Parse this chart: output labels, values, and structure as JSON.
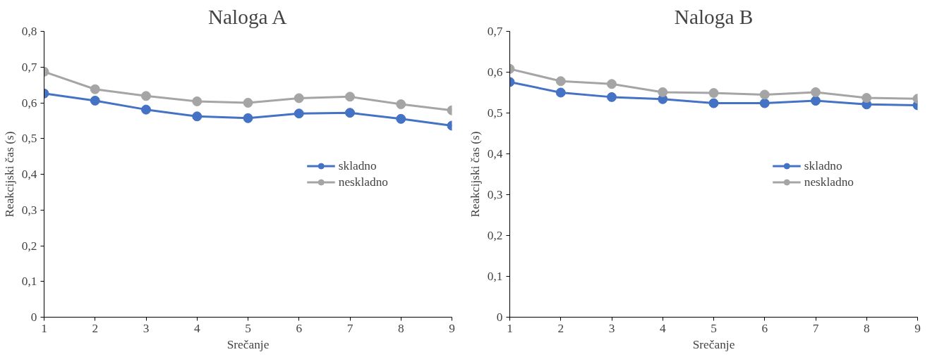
{
  "chart_data": [
    {
      "type": "line",
      "title": "Naloga A",
      "xlabel": "Srečanje",
      "ylabel": "Reakcijski čas (s)",
      "x": [
        1,
        2,
        3,
        4,
        5,
        6,
        7,
        8,
        9
      ],
      "series": [
        {
          "name": "skladno",
          "color": "#4472c4",
          "values": [
            0.626,
            0.606,
            0.581,
            0.562,
            0.557,
            0.57,
            0.572,
            0.555,
            0.536
          ]
        },
        {
          "name": "neskladno",
          "color": "#a5a5a5",
          "values": [
            0.687,
            0.638,
            0.619,
            0.604,
            0.6,
            0.613,
            0.617,
            0.596,
            0.579
          ]
        }
      ],
      "xlim": [
        1,
        9
      ],
      "xticks": [
        1,
        2,
        3,
        4,
        5,
        6,
        7,
        8,
        9
      ],
      "ylim": [
        0,
        0.8
      ],
      "yticks": [
        0,
        {
          "value": 0.1,
          "label": "0,1"
        },
        {
          "value": 0.2,
          "label": "0,2"
        },
        {
          "value": 0.3,
          "label": "0,3"
        },
        {
          "value": 0.4,
          "label": "0,4"
        },
        {
          "value": 0.5,
          "label": "0,5"
        },
        {
          "value": 0.6,
          "label": "0,6"
        },
        {
          "value": 0.7,
          "label": "0,7"
        },
        {
          "value": 0.8,
          "label": "0,8"
        }
      ],
      "grid": false,
      "legend": "right",
      "marker": "circle",
      "line_style": "solid"
    },
    {
      "type": "line",
      "title": "Naloga B",
      "xlabel": "Srečanje",
      "ylabel": "Reakcijski čas (s)",
      "x": [
        1,
        2,
        3,
        4,
        5,
        6,
        7,
        8,
        9
      ],
      "series": [
        {
          "name": "skladno",
          "color": "#4472c4",
          "values": [
            0.576,
            0.55,
            0.539,
            0.534,
            0.524,
            0.524,
            0.53,
            0.521,
            0.519
          ]
        },
        {
          "name": "neskladno",
          "color": "#a5a5a5",
          "values": [
            0.608,
            0.578,
            0.571,
            0.551,
            0.549,
            0.545,
            0.551,
            0.537,
            0.535
          ]
        }
      ],
      "xlim": [
        1,
        9
      ],
      "xticks": [
        1,
        2,
        3,
        4,
        5,
        6,
        7,
        8,
        9
      ],
      "ylim": [
        0,
        0.7
      ],
      "yticks": [
        0,
        {
          "value": 0.1,
          "label": "0,1"
        },
        {
          "value": 0.2,
          "label": "0,2"
        },
        {
          "value": 0.3,
          "label": "0,3"
        },
        {
          "value": 0.4,
          "label": "0,4"
        },
        {
          "value": 0.5,
          "label": "0,5"
        },
        {
          "value": 0.6,
          "label": "0,6"
        },
        {
          "value": 0.7,
          "label": "0,7"
        }
      ],
      "grid": false,
      "legend": "right",
      "marker": "circle",
      "line_style": "solid"
    }
  ]
}
